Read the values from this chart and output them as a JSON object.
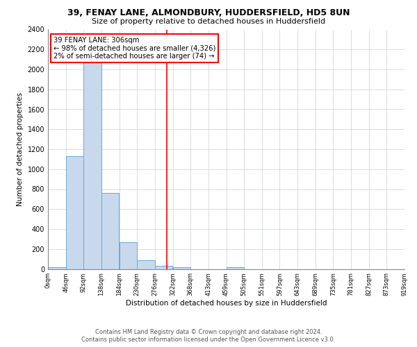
{
  "title": "39, FENAY LANE, ALMONDBURY, HUDDERSFIELD, HD5 8UN",
  "subtitle": "Size of property relative to detached houses in Huddersfield",
  "xlabel": "Distribution of detached houses by size in Huddersfield",
  "ylabel": "Number of detached properties",
  "bar_color": "#c8d9ee",
  "bar_edge_color": "#6aaad4",
  "property_line_color": "red",
  "property_sqm": 306,
  "property_label": "39 FENAY LANE: 306sqm",
  "annotation_line1": "← 98% of detached houses are smaller (4,326)",
  "annotation_line2": "2% of semi-detached houses are larger (74) →",
  "footer_line1": "Contains HM Land Registry data © Crown copyright and database right 2024.",
  "footer_line2": "Contains public sector information licensed under the Open Government Licence v3.0.",
  "bins": [
    "0sqm",
    "46sqm",
    "92sqm",
    "138sqm",
    "184sqm",
    "230sqm",
    "276sqm",
    "322sqm",
    "368sqm",
    "413sqm",
    "459sqm",
    "505sqm",
    "551sqm",
    "597sqm",
    "643sqm",
    "689sqm",
    "735sqm",
    "781sqm",
    "827sqm",
    "873sqm",
    "919sqm"
  ],
  "counts": [
    20,
    1130,
    2250,
    760,
    270,
    90,
    30,
    18,
    0,
    0,
    18,
    0,
    0,
    0,
    0,
    0,
    0,
    0,
    0,
    0
  ],
  "bin_width": 46,
  "ylim": [
    0,
    2400
  ],
  "yticks": [
    0,
    200,
    400,
    600,
    800,
    1000,
    1200,
    1400,
    1600,
    1800,
    2000,
    2200,
    2400
  ],
  "background_color": "#ffffff",
  "grid_color": "#c8d0d8",
  "figsize": [
    6.0,
    5.0
  ],
  "dpi": 100
}
